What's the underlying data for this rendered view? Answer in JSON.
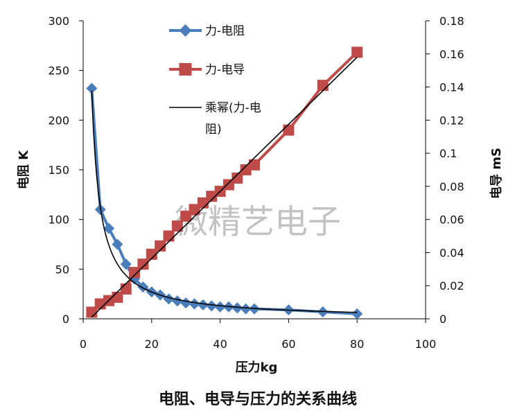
{
  "watermark": "微精艺电子",
  "chart_data": {
    "type": "scatter",
    "title": "电阻、电导与压力的关系曲线",
    "xlabel": "压力kg",
    "ylabel_left": "电阻 K",
    "ylabel_right": "电导 mS",
    "xlim": [
      0,
      100
    ],
    "ylim_left": [
      0,
      300
    ],
    "ylim_right": [
      0,
      0.18
    ],
    "x_ticks": [
      "0",
      "20",
      "40",
      "60",
      "80",
      "100"
    ],
    "y_left_ticks": [
      "0",
      "50",
      "100",
      "150",
      "200",
      "250",
      "300"
    ],
    "y_right_ticks": [
      "0",
      "0.02",
      "0.04",
      "0.06",
      "0.08",
      "0.1",
      "0.12",
      "0.14",
      "0.16",
      "0.18"
    ],
    "grid": false,
    "legend_position": "top-center",
    "series": [
      {
        "name": "力-电阻",
        "axis": "left",
        "color": "#4a7ebb",
        "marker": "diamond",
        "points": [
          [
            2.5,
            232
          ],
          [
            5,
            110
          ],
          [
            7.5,
            91
          ],
          [
            10,
            75
          ],
          [
            12.5,
            55
          ],
          [
            15,
            40
          ],
          [
            17.5,
            32
          ],
          [
            20,
            27
          ],
          [
            22.5,
            24
          ],
          [
            25,
            20
          ],
          [
            27.5,
            18
          ],
          [
            30,
            16
          ],
          [
            32.5,
            15
          ],
          [
            35,
            14
          ],
          [
            37.5,
            13
          ],
          [
            40,
            12
          ],
          [
            42.5,
            12
          ],
          [
            45,
            11
          ],
          [
            47.5,
            10
          ],
          [
            50,
            10
          ],
          [
            60,
            9
          ],
          [
            70,
            7
          ],
          [
            80,
            5
          ]
        ]
      },
      {
        "name": "力-电导",
        "axis": "right",
        "color": "#be4b48",
        "marker": "square",
        "points": [
          [
            2.5,
            0.004
          ],
          [
            5,
            0.009
          ],
          [
            7.5,
            0.011
          ],
          [
            10,
            0.013
          ],
          [
            12.5,
            0.018
          ],
          [
            15,
            0.028
          ],
          [
            17.5,
            0.033
          ],
          [
            20,
            0.039
          ],
          [
            22.5,
            0.044
          ],
          [
            25,
            0.05
          ],
          [
            27.5,
            0.056
          ],
          [
            30,
            0.062
          ],
          [
            32.5,
            0.066
          ],
          [
            35,
            0.07
          ],
          [
            37.5,
            0.074
          ],
          [
            40,
            0.077
          ],
          [
            42.5,
            0.081
          ],
          [
            45,
            0.085
          ],
          [
            47.5,
            0.09
          ],
          [
            50,
            0.093
          ],
          [
            60,
            0.114
          ],
          [
            70,
            0.141
          ],
          [
            80,
            0.161
          ]
        ]
      }
    ],
    "trendlines": [
      {
        "name": "乘幂(力-电阻)",
        "axis": "left",
        "type": "power",
        "color": "#000000",
        "coefficient": 590,
        "exponent": -1.03,
        "x_range": [
          2.5,
          80
        ]
      },
      {
        "axis": "right",
        "type": "linear",
        "color": "#000000",
        "x_range": [
          2.5,
          80
        ],
        "endpoints": [
          0.001,
          0.158
        ]
      }
    ]
  }
}
